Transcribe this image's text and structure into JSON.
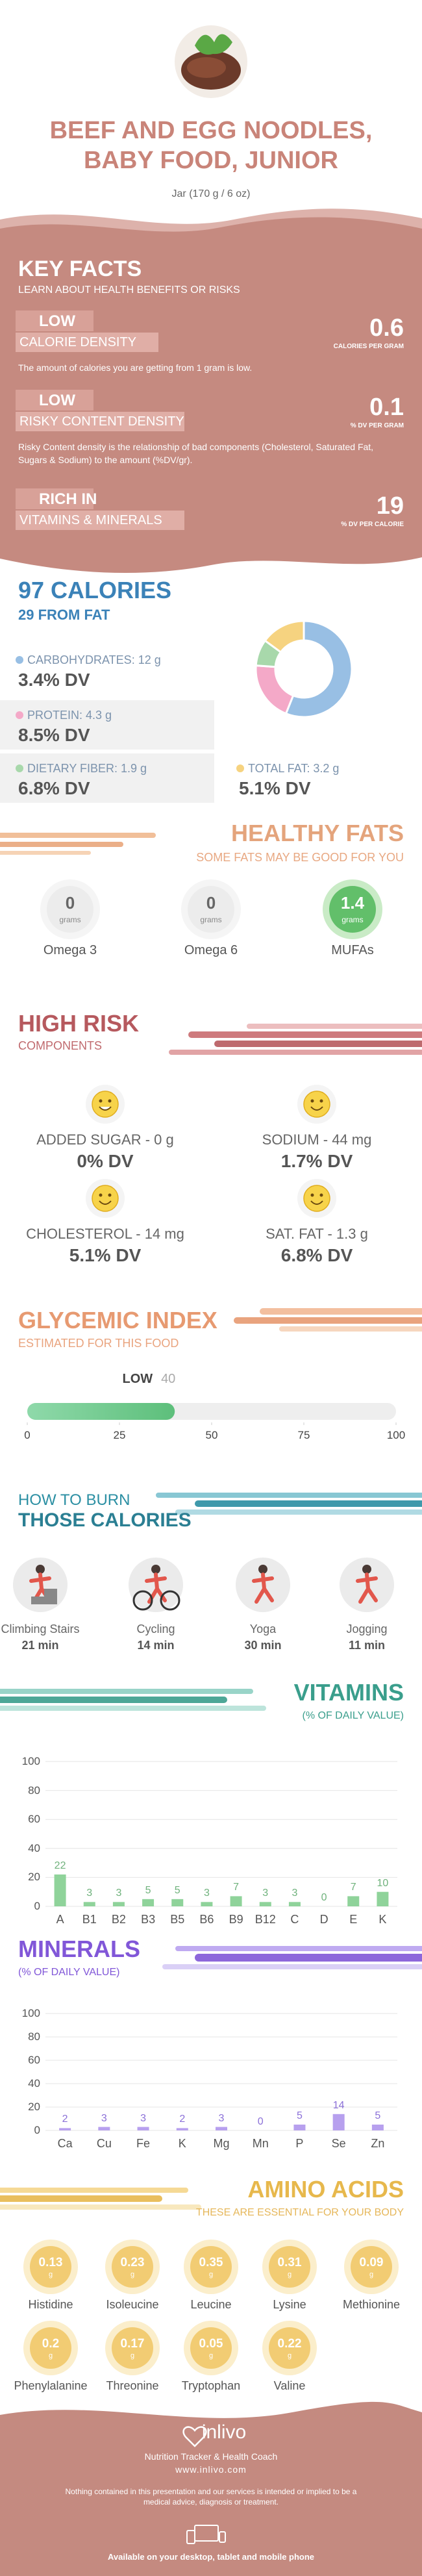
{
  "header": {
    "title": "BEEF AND EGG NOODLES, BABY FOOD, JUNIOR",
    "subtitle": "Jar (170 g / 6 oz)"
  },
  "key_facts": {
    "title": "KEY FACTS",
    "subtitle": "LEARN ABOUT HEALTH BENEFITS OR RISKS",
    "items": [
      {
        "level": "LOW",
        "name": "CALORIE DENSITY",
        "value": 0.6,
        "unit": "CALORIES PER GRAM",
        "description": "The amount of calories you are getting from 1 gram is low."
      },
      {
        "level": "LOW",
        "name": "RISKY CONTENT DENSITY",
        "value": 0.1,
        "unit": "% DV PER GRAM",
        "description": "Risky Content density is the relationship of bad components (Cholesterol, Saturated Fat, Sugars & Sodium) to the amount (%DV/gr)."
      },
      {
        "level": "RICH IN",
        "name": "VITAMINS & MINERALS",
        "value": 19,
        "unit": "% DV PER CALORIE"
      }
    ]
  },
  "calories": {
    "title": "97 CALORIES",
    "subtitle": "29 FROM FAT"
  },
  "healthy_fats": {
    "title": "HEALTHY FATS",
    "subtitle": "SOME FATS MAY BE GOOD FOR YOU",
    "unit": "grams",
    "items": [
      {
        "name": "Omega 3",
        "value": 0
      },
      {
        "name": "Omega 6",
        "value": 0
      },
      {
        "name": "MUFAs",
        "value": 1.4
      }
    ]
  },
  "high_risk": {
    "title": "HIGH RISK",
    "subtitle": "COMPONENTS",
    "items": [
      {
        "name": "ADDED SUGAR - 0 g",
        "dv": "0% DV"
      },
      {
        "name": "SODIUM - 44 mg",
        "dv": "1.7% DV"
      },
      {
        "name": "CHOLESTEROL - 14 mg",
        "dv": "5.1% DV"
      },
      {
        "name": "SAT. FAT - 1.3 g",
        "dv": "6.8% DV"
      }
    ]
  },
  "glycemic": {
    "title": "GLYCEMIC INDEX",
    "subtitle": "ESTIMATED FOR THIS FOOD",
    "level": "LOW",
    "value": 40,
    "xlim": [
      0,
      100
    ],
    "xticks": [
      0,
      25,
      50,
      75,
      100
    ]
  },
  "burn": {
    "title": "HOW TO BURN",
    "subtitle": "THOSE CALORIES",
    "items": [
      {
        "name": "Climbing Stairs",
        "time": "21 min"
      },
      {
        "name": "Cycling",
        "time": "14 min"
      },
      {
        "name": "Yoga",
        "time": "30 min"
      },
      {
        "name": "Jogging",
        "time": "11 min"
      }
    ]
  },
  "chart_data": [
    {
      "type": "pie",
      "donut": true,
      "categories": [
        "CARBOHYDRATES: 12 g",
        "PROTEIN: 4.3 g",
        "DIETARY FIBER: 1.9 g",
        "TOTAL FAT: 3.2 g"
      ],
      "values": [
        12,
        4.3,
        1.9,
        3.2
      ],
      "colors": [
        "#98bfe4",
        "#f4a9c8",
        "#a8d8ab",
        "#f6d380"
      ],
      "dv": [
        "3.4% DV",
        "8.5% DV",
        "6.8% DV",
        "5.1% DV"
      ]
    },
    {
      "type": "bar",
      "title": "VITAMINS",
      "subtitle": "(% OF DAILY VALUE)",
      "categories": [
        "A",
        "B1",
        "B2",
        "B3",
        "B5",
        "B6",
        "B9",
        "B12",
        "C",
        "D",
        "E",
        "K"
      ],
      "values": [
        22,
        3,
        3,
        5,
        5,
        3,
        7,
        3,
        3,
        0,
        7,
        10
      ],
      "color": "#8fd39a",
      "label_color": "#6fb27c",
      "ylim": [
        0,
        100
      ],
      "yticks": [
        0,
        20,
        40,
        60,
        80,
        100
      ],
      "grid": true
    },
    {
      "type": "bar",
      "title": "MINERALS",
      "subtitle": "(% OF DAILY VALUE)",
      "categories": [
        "Ca",
        "Cu",
        "Fe",
        "K",
        "Mg",
        "Mn",
        "P",
        "Se",
        "Zn"
      ],
      "values": [
        2,
        3,
        3,
        2,
        3,
        0,
        5,
        14,
        5
      ],
      "color": "#b7a0ee",
      "label_color": "#8b70d8",
      "ylim": [
        0,
        100
      ],
      "yticks": [
        0,
        20,
        40,
        60,
        80,
        100
      ],
      "grid": true
    }
  ],
  "amino_acids": {
    "title": "AMINO ACIDS",
    "subtitle": "THESE ARE ESSENTIAL FOR YOUR BODY",
    "unit": "g",
    "items": [
      {
        "name": "Histidine",
        "value": 0.13
      },
      {
        "name": "Isoleucine",
        "value": 0.23
      },
      {
        "name": "Leucine",
        "value": 0.35
      },
      {
        "name": "Lysine",
        "value": 0.31
      },
      {
        "name": "Methionine",
        "value": 0.09
      },
      {
        "name": "Phenylalanine",
        "value": 0.2
      },
      {
        "name": "Threonine",
        "value": 0.17
      },
      {
        "name": "Tryptophan",
        "value": 0.05
      },
      {
        "name": "Valine",
        "value": 0.22
      }
    ]
  },
  "footer": {
    "brand": "inlivo",
    "tagline": "Nutrition Tracker & Health Coach",
    "url": "www.inlivo.com",
    "disclaimer": "Nothing contained in this presentation and our services is intended or implied to be a medical advice, diagnosis or treatment.",
    "availability": "Available on your desktop, tablet and mobile phone"
  }
}
